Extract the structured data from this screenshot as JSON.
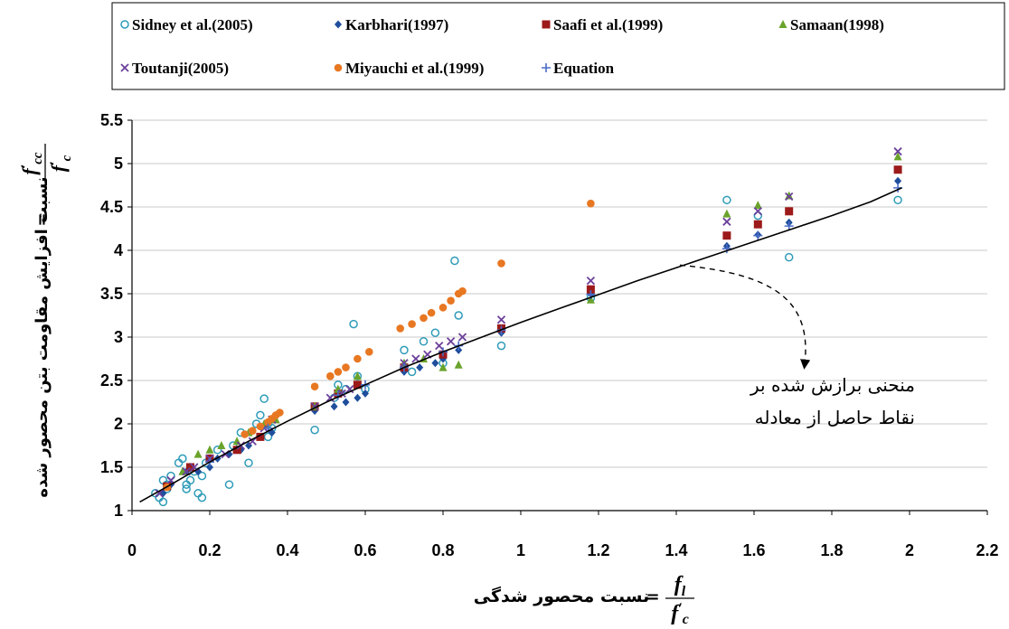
{
  "chart_data": {
    "type": "scatter",
    "xlim": [
      0,
      2.2
    ],
    "ylim": [
      1,
      5.5
    ],
    "xticks": [
      0,
      0.2,
      0.4,
      0.6,
      0.8,
      1,
      1.2,
      1.4,
      1.6,
      1.8,
      2,
      2.2
    ],
    "yticks": [
      1,
      1.5,
      2,
      2.5,
      3,
      3.5,
      4,
      4.5,
      5,
      5.5
    ],
    "xtick_labels": [
      "0",
      "0.2",
      "0.4",
      "0.6",
      "0.8",
      "1",
      "1.2",
      "1.4",
      "1.6",
      "1.8",
      "2",
      "2.2"
    ],
    "ytick_labels": [
      "1",
      "1.5",
      "2",
      "2.5",
      "3",
      "3.5",
      "4",
      "4.5",
      "5",
      "5.5"
    ],
    "grid": "horizontal",
    "legend_position": "top",
    "xlabel": "نسبت محصور شدگی",
    "ylabel": "نسبت افزایش مقاومت بتن محصور شده",
    "xlabel_fraction": {
      "numerator": "f",
      "numerator_sub": "l",
      "denominator": "f",
      "denominator_sub": "c",
      "prime": "′"
    },
    "ylabel_fraction": {
      "numerator": "f",
      "numerator_sub": "cc",
      "denominator": "f",
      "denominator_sub": "c",
      "prime": "′"
    },
    "annotation": {
      "lines": [
        "منحنی برازش شده بر",
        "نقاط حاصل از معادله"
      ],
      "points_to": [
        1.4,
        3.83
      ]
    },
    "fit_curve": {
      "x": [
        0.02,
        0.1,
        0.2,
        0.3,
        0.4,
        0.5,
        0.6,
        0.7,
        0.8,
        0.9,
        1.0,
        1.1,
        1.2,
        1.3,
        1.4,
        1.5,
        1.6,
        1.7,
        1.8,
        1.9,
        1.98
      ],
      "y": [
        1.1,
        1.3,
        1.56,
        1.8,
        2.03,
        2.25,
        2.45,
        2.65,
        2.83,
        3.0,
        3.17,
        3.33,
        3.49,
        3.65,
        3.8,
        3.95,
        4.1,
        4.25,
        4.4,
        4.56,
        4.72
      ]
    },
    "series": [
      {
        "name": "Sidney et al.(2005)",
        "marker": "circle-open",
        "color": "#2e9bb8",
        "x": [
          0.06,
          0.07,
          0.08,
          0.08,
          0.09,
          0.09,
          0.1,
          0.12,
          0.13,
          0.14,
          0.14,
          0.15,
          0.15,
          0.16,
          0.17,
          0.18,
          0.18,
          0.19,
          0.2,
          0.22,
          0.25,
          0.26,
          0.28,
          0.3,
          0.32,
          0.33,
          0.34,
          0.35,
          0.35,
          0.36,
          0.47,
          0.52,
          0.53,
          0.55,
          0.57,
          0.58,
          0.6,
          0.7,
          0.72,
          0.75,
          0.78,
          0.8,
          0.83,
          0.84,
          0.95,
          1.18,
          1.53,
          1.61,
          1.69,
          1.97
        ],
        "y": [
          1.2,
          1.15,
          1.1,
          1.35,
          1.3,
          1.25,
          1.4,
          1.55,
          1.6,
          1.3,
          1.25,
          1.5,
          1.35,
          1.45,
          1.2,
          1.15,
          1.4,
          1.55,
          1.6,
          1.7,
          1.3,
          1.75,
          1.9,
          1.55,
          2.0,
          2.1,
          2.29,
          2.0,
          1.85,
          1.95,
          1.93,
          2.3,
          2.45,
          2.4,
          3.15,
          2.55,
          2.4,
          2.85,
          2.6,
          2.95,
          3.05,
          2.7,
          3.88,
          3.25,
          2.9,
          3.45,
          4.58,
          4.4,
          3.92,
          4.58
        ]
      },
      {
        "name": "Karbhari(1997)",
        "marker": "diamond",
        "color": "#1f4e9c",
        "x": [
          0.08,
          0.1,
          0.14,
          0.17,
          0.2,
          0.22,
          0.25,
          0.28,
          0.3,
          0.33,
          0.36,
          0.47,
          0.52,
          0.55,
          0.58,
          0.6,
          0.7,
          0.74,
          0.78,
          0.8,
          0.84,
          0.95,
          1.18,
          1.53,
          1.61,
          1.69,
          1.97
        ],
        "y": [
          1.2,
          1.3,
          1.45,
          1.45,
          1.5,
          1.6,
          1.65,
          1.7,
          1.75,
          1.85,
          1.9,
          2.15,
          2.2,
          2.25,
          2.3,
          2.35,
          2.6,
          2.65,
          2.7,
          2.75,
          2.85,
          3.05,
          3.5,
          4.05,
          4.18,
          4.32,
          4.8
        ]
      },
      {
        "name": "Saafi et al.(1999)",
        "marker": "square",
        "color": "#9c1a1a",
        "x": [
          0.09,
          0.15,
          0.2,
          0.27,
          0.33,
          0.47,
          0.53,
          0.58,
          0.7,
          0.8,
          0.95,
          1.18,
          1.53,
          1.61,
          1.69,
          1.97
        ],
        "y": [
          1.28,
          1.5,
          1.6,
          1.7,
          1.85,
          2.2,
          2.35,
          2.45,
          2.65,
          2.8,
          3.1,
          3.55,
          4.17,
          4.3,
          4.45,
          4.93
        ]
      },
      {
        "name": "Samaan(1998)",
        "marker": "triangle",
        "color": "#6aa32b",
        "x": [
          0.13,
          0.17,
          0.2,
          0.23,
          0.27,
          0.3,
          0.34,
          0.37,
          0.47,
          0.53,
          0.58,
          0.7,
          0.75,
          0.8,
          0.84,
          1.18,
          1.53,
          1.61,
          1.69,
          1.97
        ],
        "y": [
          1.45,
          1.65,
          1.7,
          1.75,
          1.8,
          1.9,
          2.0,
          2.05,
          2.2,
          2.4,
          2.55,
          2.7,
          2.75,
          2.65,
          2.68,
          3.43,
          4.42,
          4.52,
          4.63,
          5.08
        ]
      },
      {
        "name": "Toutanji(2005)",
        "marker": "x",
        "color": "#6b3f9b",
        "x": [
          0.07,
          0.1,
          0.14,
          0.16,
          0.2,
          0.24,
          0.28,
          0.31,
          0.34,
          0.36,
          0.47,
          0.51,
          0.54,
          0.56,
          0.7,
          0.73,
          0.76,
          0.79,
          0.82,
          0.85,
          0.95,
          1.18,
          1.53,
          1.61,
          1.69,
          1.97
        ],
        "y": [
          1.2,
          1.35,
          1.45,
          1.5,
          1.6,
          1.65,
          1.75,
          1.8,
          1.95,
          2.05,
          2.2,
          2.3,
          2.35,
          2.4,
          2.7,
          2.75,
          2.8,
          2.9,
          2.95,
          3.0,
          3.2,
          3.65,
          4.33,
          4.45,
          4.62,
          5.14
        ]
      },
      {
        "name": "Miyauchi et al.(1999)",
        "marker": "circle-filled",
        "color": "#e87722",
        "x": [
          0.09,
          0.29,
          0.31,
          0.33,
          0.35,
          0.36,
          0.37,
          0.38,
          0.47,
          0.51,
          0.53,
          0.55,
          0.58,
          0.61,
          0.69,
          0.72,
          0.75,
          0.77,
          0.8,
          0.82,
          0.84,
          0.85,
          0.95,
          1.18
        ],
        "y": [
          1.27,
          1.88,
          1.92,
          1.97,
          2.02,
          2.06,
          2.1,
          2.13,
          2.43,
          2.55,
          2.6,
          2.65,
          2.75,
          2.83,
          3.1,
          3.15,
          3.22,
          3.28,
          3.34,
          3.42,
          3.5,
          3.53,
          3.85,
          4.54
        ]
      },
      {
        "name": "Equation",
        "marker": "plus",
        "color": "#4a6cc7",
        "x": [
          0.2,
          0.35,
          0.53,
          0.6,
          0.7,
          0.8,
          0.84,
          0.95,
          1.18,
          1.53,
          1.61,
          1.69,
          1.97
        ],
        "y": [
          1.56,
          1.95,
          2.33,
          2.45,
          2.65,
          2.83,
          2.9,
          3.08,
          3.49,
          4.02,
          4.17,
          4.28,
          4.72
        ]
      }
    ]
  }
}
